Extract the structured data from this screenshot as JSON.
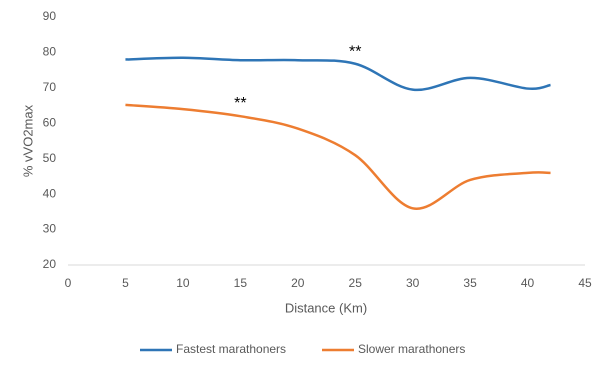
{
  "chart_data": {
    "type": "line",
    "x_label": "Distance (Km)",
    "y_label": "% vVO2max",
    "x": [
      5,
      10,
      15,
      20,
      25,
      30,
      35,
      40,
      42
    ],
    "series": [
      {
        "name": "Fastest marathoners",
        "color": "#2e75b6",
        "values": [
          78,
          78.5,
          77.8,
          77.8,
          76.8,
          69.5,
          72.8,
          69.8,
          70.8
        ]
      },
      {
        "name": "Slower marathoners",
        "color": "#ed7d31",
        "values": [
          65.2,
          64,
          62,
          58.5,
          51,
          36,
          44,
          46,
          46
        ]
      }
    ],
    "xlim": [
      0,
      45
    ],
    "xticks": [
      0,
      5,
      10,
      15,
      20,
      25,
      30,
      35,
      40,
      45
    ],
    "ylim": [
      20,
      90
    ],
    "yticks": [
      20,
      30,
      40,
      50,
      60,
      70,
      80,
      90
    ],
    "smooth": true,
    "annotations": [
      {
        "text": "**",
        "x": 25,
        "y": 80
      },
      {
        "text": "**",
        "x": 15,
        "y": 65.5
      }
    ]
  }
}
